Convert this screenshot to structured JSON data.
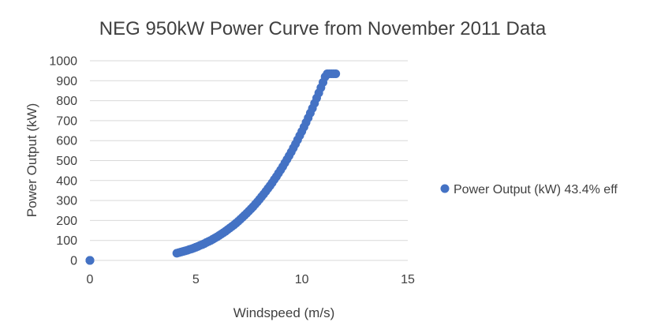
{
  "chart_data": {
    "type": "scatter",
    "title": "NEG 950kW Power Curve from November 2011 Data",
    "xlabel": "Windspeed (m/s)",
    "ylabel": "Power Output (kW)",
    "xlim": [
      0,
      15
    ],
    "ylim": [
      0,
      1000
    ],
    "xticks": [
      0,
      5,
      10,
      15
    ],
    "yticks": [
      0,
      100,
      200,
      300,
      400,
      500,
      600,
      700,
      800,
      900,
      1000
    ],
    "grid": "horizontal",
    "legend_position": "right",
    "color": "#4472c4",
    "series": [
      {
        "name": "Power Output (kW) 43.4% eff",
        "x": [
          0,
          0,
          0,
          4.1,
          4.2,
          4.3,
          4.4,
          4.5,
          4.6,
          4.7,
          4.8,
          4.9,
          5.0,
          5.1,
          5.2,
          5.3,
          5.4,
          5.5,
          5.6,
          5.7,
          5.8,
          5.9,
          6.0,
          6.1,
          6.2,
          6.3,
          6.4,
          6.5,
          6.6,
          6.7,
          6.8,
          6.9,
          7.0,
          7.1,
          7.2,
          7.3,
          7.4,
          7.5,
          7.6,
          7.7,
          7.8,
          7.9,
          8.0,
          8.1,
          8.2,
          8.3,
          8.4,
          8.5,
          8.6,
          8.7,
          8.8,
          8.9,
          9.0,
          9.1,
          9.2,
          9.3,
          9.4,
          9.5,
          9.6,
          9.7,
          9.8,
          9.9,
          10.0,
          10.1,
          10.2,
          10.3,
          10.4,
          10.5,
          10.6,
          10.7,
          10.8,
          10.9,
          11.0,
          11.1,
          11.2,
          11.3,
          11.4,
          11.5,
          11.6
        ],
        "y": [
          0,
          0,
          0,
          36,
          39,
          42,
          45,
          48,
          51,
          55,
          58,
          62,
          66,
          70,
          75,
          79,
          84,
          90,
          95,
          100,
          106,
          112,
          118,
          125,
          132,
          139,
          146,
          154,
          162,
          170,
          178,
          187,
          196,
          206,
          216,
          226,
          236,
          247,
          258,
          269,
          281,
          293,
          306,
          319,
          332,
          346,
          360,
          374,
          389,
          405,
          420,
          437,
          453,
          470,
          488,
          506,
          524,
          543,
          563,
          583,
          604,
          625,
          646,
          668,
          691,
          714,
          738,
          762,
          787,
          813,
          839,
          865,
          892,
          920,
          941,
          968,
          995,
          1022,
          935
        ]
      }
    ]
  }
}
